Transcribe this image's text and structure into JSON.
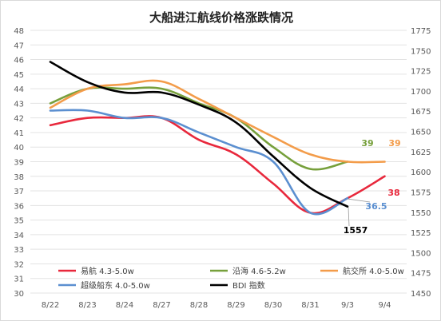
{
  "chart_data": {
    "type": "line",
    "title": "大船进江航线价格涨跌情况",
    "categories": [
      "8/22",
      "8/23",
      "8/24",
      "8/27",
      "8/28",
      "8/29",
      "8/30",
      "8/31",
      "9/3",
      "9/4"
    ],
    "left_axis": {
      "ylim": [
        30,
        48
      ],
      "step": 1
    },
    "right_axis": {
      "ylim": [
        1450,
        1775
      ],
      "step": 25
    },
    "grid": "horizontal",
    "legend_position": "bottom-left",
    "series": [
      {
        "name": "易航 4.3-5.0w",
        "axis": "left",
        "color": "#e8283c",
        "values": [
          41.5,
          42.0,
          42.0,
          42.0,
          40.5,
          39.5,
          37.5,
          35.5,
          36.5,
          38.0
        ]
      },
      {
        "name": "沿海 4.6-5.2w",
        "axis": "left",
        "color": "#77a03c",
        "values": [
          43.0,
          44.0,
          44.0,
          44.0,
          43.0,
          42.0,
          40.0,
          38.5,
          39.0,
          null
        ]
      },
      {
        "name": "航交所 4.0-5.0w",
        "axis": "left",
        "color": "#f39c4a",
        "values": [
          42.7,
          44.0,
          44.3,
          44.5,
          43.3,
          42.0,
          40.7,
          39.5,
          39.0,
          39.0
        ]
      },
      {
        "name": "超级船东 4.0-5.0w",
        "axis": "left",
        "color": "#5b8fd0",
        "values": [
          42.5,
          42.5,
          42.0,
          42.0,
          41.0,
          40.0,
          39.0,
          35.5,
          36.5,
          null
        ]
      },
      {
        "name": "BDI 指数",
        "axis": "right",
        "color": "#000000",
        "values": [
          1736,
          1711,
          1698,
          1698,
          1683,
          1661,
          1619,
          1580,
          1557,
          null
        ]
      }
    ],
    "end_labels": [
      {
        "series": 1,
        "text": "39",
        "color": "#77a03c"
      },
      {
        "series": 2,
        "text": "39",
        "color": "#f39c4a"
      },
      {
        "series": 0,
        "text": "38",
        "color": "#e8283c"
      },
      {
        "series": 3,
        "text": "36.5",
        "color": "#5b8fd0"
      },
      {
        "series": 4,
        "text": "1557",
        "color": "#000000"
      }
    ]
  }
}
